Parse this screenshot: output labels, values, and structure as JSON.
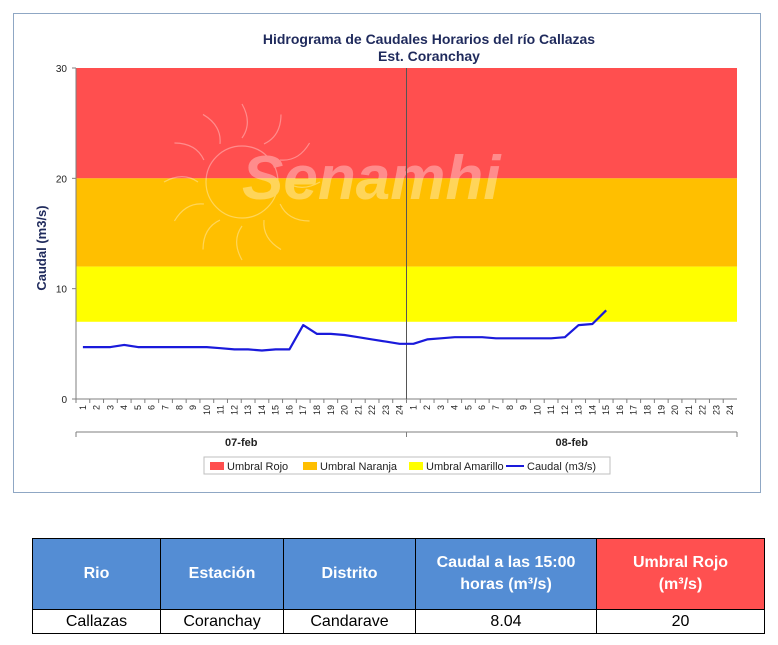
{
  "chart_data": {
    "type": "line",
    "title": "Hidrograma de Caudales Horarios del río Callazas",
    "subtitle": "Est. Coranchay",
    "ylabel": "Caudal  (m3/s)",
    "ylim": [
      0,
      30
    ],
    "yticks": [
      "0",
      "10",
      "20",
      "30"
    ],
    "x_ticks": [
      "1",
      "2",
      "3",
      "4",
      "5",
      "6",
      "7",
      "8",
      "9",
      "10",
      "11",
      "12",
      "13",
      "14",
      "15",
      "16",
      "17",
      "18",
      "19",
      "20",
      "21",
      "22",
      "23",
      "24",
      "1",
      "2",
      "3",
      "4",
      "5",
      "6",
      "7",
      "8",
      "9",
      "10",
      "11",
      "12",
      "13",
      "14",
      "15",
      "16",
      "17",
      "18",
      "19",
      "20",
      "21",
      "22",
      "23",
      "24"
    ],
    "days": [
      "07-feb",
      "08-feb"
    ],
    "thresholds": [
      {
        "name": "Umbral Rojo",
        "from": 20,
        "to": 30,
        "color": "#ff4f4f"
      },
      {
        "name": "Umbral Naranja",
        "from": 12,
        "to": 20,
        "color": "#ffbf00"
      },
      {
        "name": "Umbral Amarillo",
        "from": 7,
        "to": 12,
        "color": "#ffff00"
      }
    ],
    "series": [
      {
        "name": "Caudal (m3/s)",
        "color": "#1a1adb",
        "values": [
          4.7,
          4.7,
          4.7,
          4.9,
          4.7,
          4.7,
          4.7,
          4.7,
          4.7,
          4.7,
          4.6,
          4.5,
          4.5,
          4.4,
          4.5,
          4.5,
          6.7,
          5.9,
          5.9,
          5.8,
          5.6,
          5.4,
          5.2,
          5.0,
          5.0,
          5.4,
          5.5,
          5.6,
          5.6,
          5.6,
          5.5,
          5.5,
          5.5,
          5.5,
          5.5,
          5.6,
          6.7,
          6.8,
          8.04
        ]
      }
    ],
    "legend": [
      "Umbral Rojo",
      "Umbral Naranja",
      "Umbral Amarillo",
      "Caudal (m3/s)"
    ],
    "legend_position": "bottom",
    "watermark": "Senamhi"
  },
  "table": {
    "headers": [
      "Rio",
      "Estación",
      "Distrito",
      "Caudal a las 15:00 horas (m³/s)",
      "Umbral Rojo (m³/s)"
    ],
    "row": [
      "Callazas",
      "Coranchay",
      "Candarave",
      "8.04",
      "20"
    ]
  }
}
